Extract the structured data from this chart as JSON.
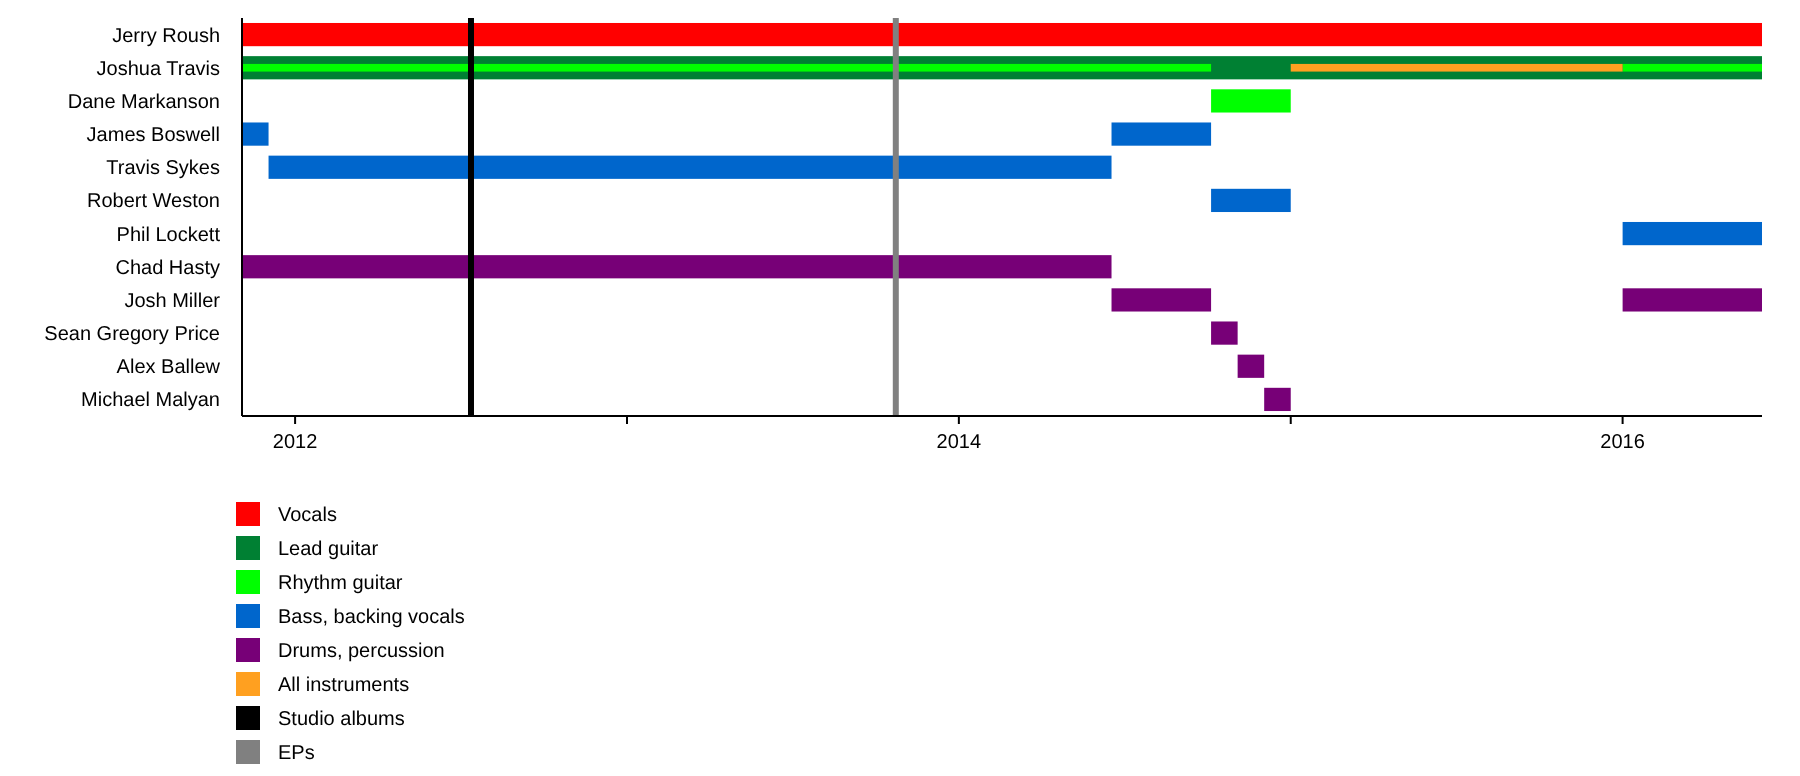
{
  "chart_data": {
    "type": "bar",
    "orientation": "horizontal",
    "categories": [
      "Jerry Roush",
      "Joshua Travis",
      "Dane Markanson",
      "James Boswell",
      "Travis Sykes",
      "Robert Weston",
      "Phil Lockett",
      "Chad Hasty",
      "Josh Miller",
      "Sean Gregory Price",
      "Alex Ballew",
      "Michael Malyan"
    ],
    "series": [
      {
        "name": "Vocals",
        "color": "#ff0000",
        "base": [
          2011.84,
          null,
          null,
          null,
          null,
          null,
          null,
          null,
          null,
          null,
          null,
          null
        ],
        "values": [
          4.58,
          null,
          null,
          null,
          null,
          null,
          null,
          null,
          null,
          null,
          null,
          null
        ]
      },
      {
        "name": "Lead guitar",
        "color": "#008033",
        "base": [
          null,
          2011.84,
          null,
          null,
          null,
          null,
          null,
          null,
          null,
          null,
          null,
          null
        ],
        "values": [
          null,
          4.58,
          null,
          null,
          null,
          null,
          null,
          null,
          null,
          null,
          null,
          null
        ]
      },
      {
        "name": "Rhythm guitar",
        "color": "#00ff00",
        "base": [
          null,
          2011.84,
          2014.76,
          null,
          null,
          null,
          null,
          null,
          null,
          null,
          null,
          null
        ],
        "values": [
          null,
          2.92,
          0.24,
          null,
          null,
          null,
          null,
          null,
          null,
          null,
          null,
          null
        ]
      },
      {
        "color": "#00ff00",
        "base": [
          null,
          2016.0,
          null,
          null,
          null,
          null,
          null,
          null,
          null,
          null,
          null,
          null
        ],
        "values": [
          null,
          0.42,
          null,
          null,
          null,
          null,
          null,
          null,
          null,
          null,
          null,
          null
        ]
      },
      {
        "name": "Bass, backing vocals",
        "color": "#0066cc",
        "base": [
          null,
          null,
          null,
          2011.84,
          2011.92,
          2014.76,
          2016.0,
          null,
          null,
          null,
          null,
          null
        ],
        "values": [
          null,
          null,
          null,
          0.08,
          2.54,
          0.24,
          0.42,
          null,
          null,
          null,
          null,
          null
        ]
      },
      {
        "color": "#0066cc",
        "base": [
          null,
          null,
          null,
          2014.46,
          null,
          null,
          null,
          null,
          null,
          null,
          null,
          null
        ],
        "values": [
          null,
          null,
          null,
          0.3,
          null,
          null,
          null,
          null,
          null,
          null,
          null,
          null
        ]
      },
      {
        "name": "Drums, percussion",
        "color": "#770077",
        "base": [
          null,
          null,
          null,
          null,
          null,
          null,
          null,
          2011.84,
          2014.46,
          2014.76,
          2014.84,
          2014.92
        ],
        "values": [
          null,
          null,
          null,
          null,
          null,
          null,
          null,
          2.62,
          0.3,
          0.08,
          0.08,
          0.08
        ]
      },
      {
        "color": "#770077",
        "base": [
          null,
          null,
          null,
          null,
          null,
          null,
          null,
          null,
          2016.0,
          null,
          null,
          null
        ],
        "values": [
          null,
          null,
          null,
          null,
          null,
          null,
          null,
          null,
          0.42,
          null,
          null,
          null
        ]
      },
      {
        "name": "All instruments",
        "color": "#ffa020",
        "base": [
          null,
          2015.0,
          null,
          null,
          null,
          null,
          null,
          null,
          null,
          null,
          null,
          null
        ],
        "values": [
          null,
          1.0,
          null,
          null,
          null,
          null,
          null,
          null,
          null,
          null,
          null,
          null
        ]
      }
    ],
    "ref_lines": [
      {
        "axis": "x",
        "value": 2012.53,
        "label": "Studio albums",
        "color": "#000000"
      },
      {
        "axis": "x",
        "value": 2013.81,
        "label": "EPs",
        "color": "#808080"
      }
    ],
    "xlim": [
      2011.84,
      2016.42
    ],
    "xticks": [
      2012,
      {
        "value": 2013,
        "label": null
      },
      2014,
      {
        "value": 2015,
        "label": null
      },
      2016
    ],
    "grid": false,
    "legend": "bottom left"
  }
}
